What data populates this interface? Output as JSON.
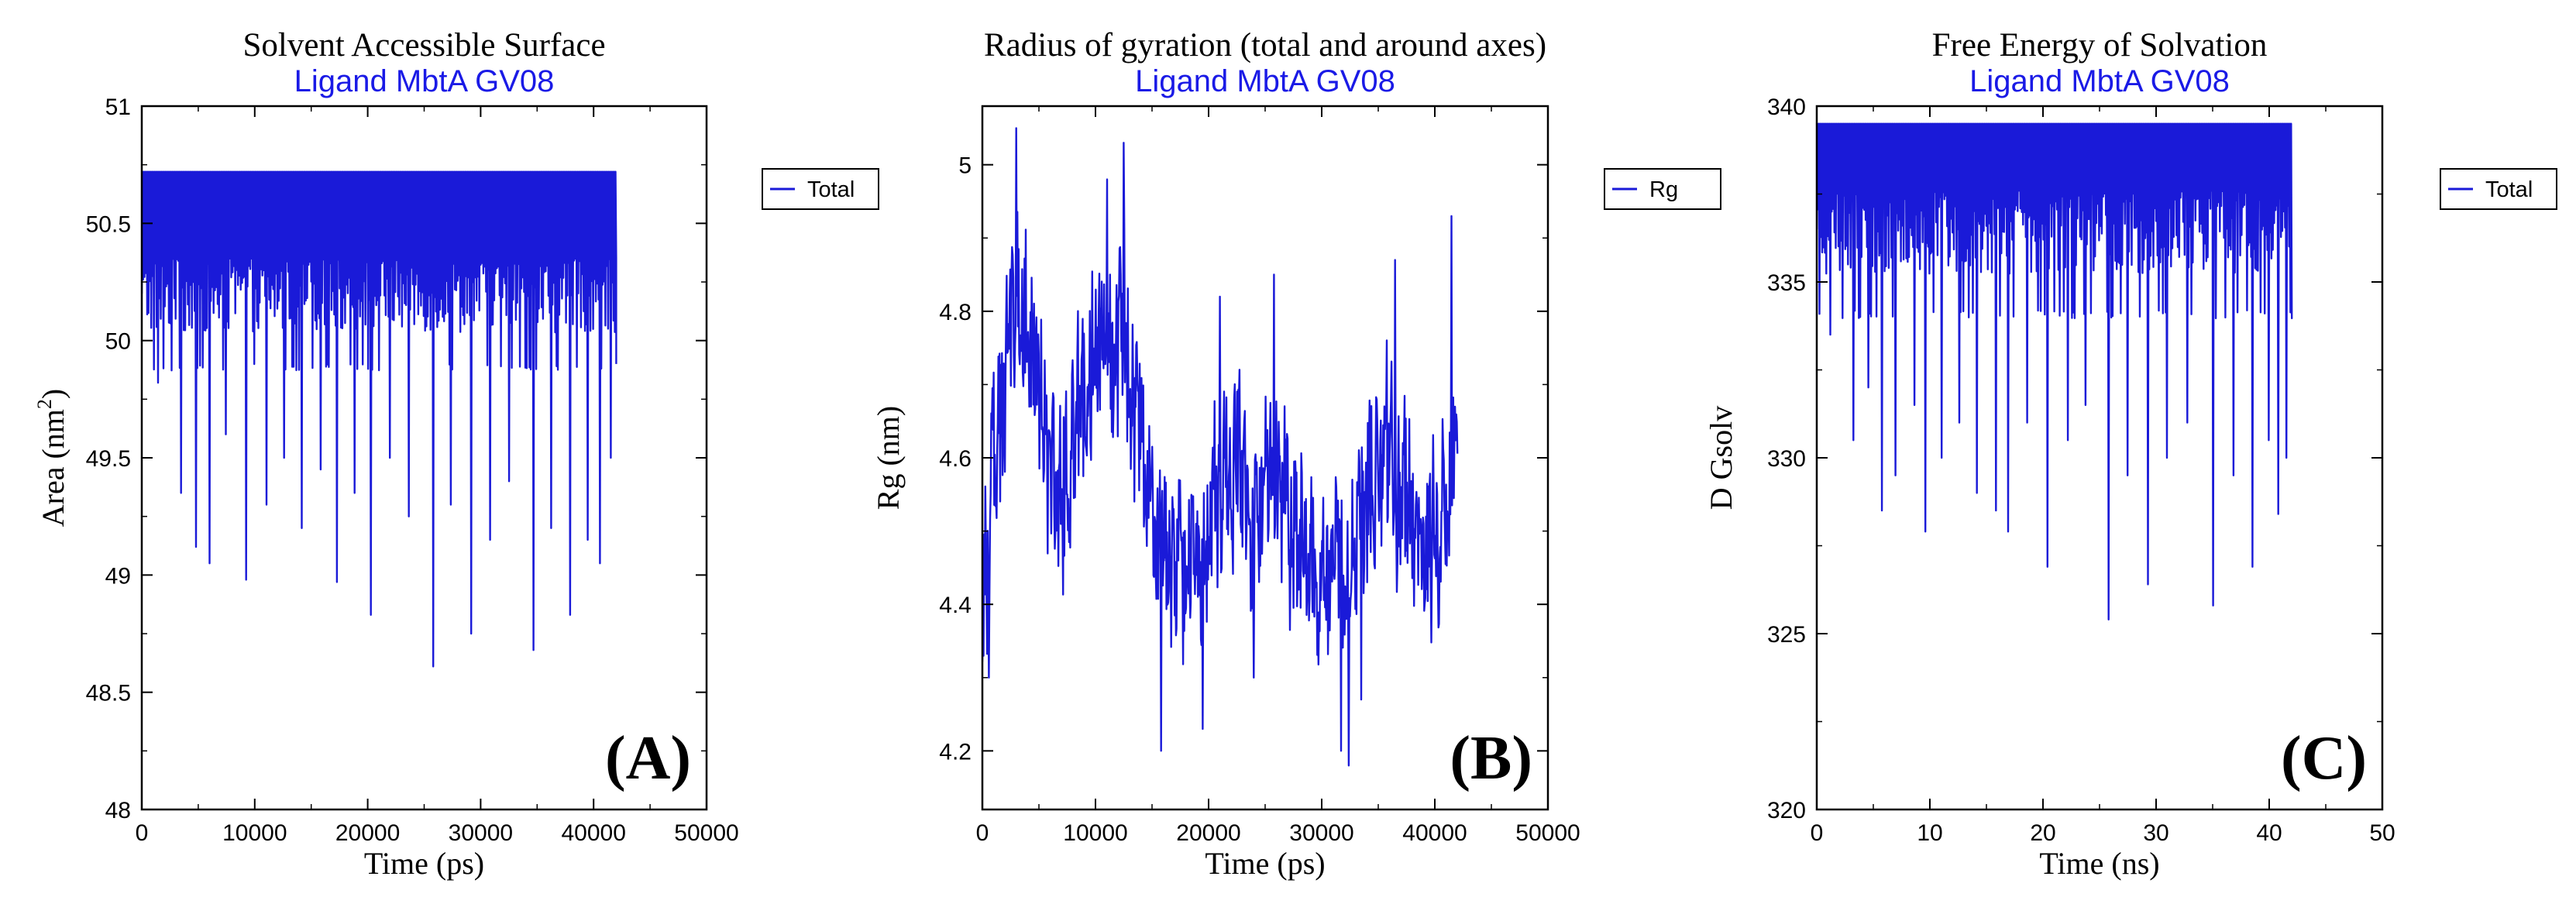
{
  "colors": {
    "series": "#1a1ad8",
    "subtitle": "#1a1ae6",
    "axis": "#000000"
  },
  "chart_data": [
    {
      "id": "A",
      "type": "line",
      "panel_label": "(A)",
      "title": "Solvent Accessible Surface",
      "subtitle": "Ligand MbtA GV08",
      "xlabel": "Time (ps)",
      "ylabel": "Area (nm²)",
      "ylabel_main": "Area (nm",
      "ylabel_sup": "2",
      "ylabel_end": ")",
      "xlim": [
        0,
        50000
      ],
      "ylim": [
        48,
        51
      ],
      "xticks": [
        0,
        10000,
        20000,
        30000,
        40000,
        50000
      ],
      "xtick_labels": [
        "0",
        "10000",
        "20000",
        "30000",
        "40000",
        "50000"
      ],
      "yticks": [
        48,
        48.5,
        49,
        49.5,
        50,
        50.5,
        51
      ],
      "ytick_labels": [
        "48",
        "48.5",
        "49",
        "49.5",
        "50",
        "50.5",
        "51"
      ],
      "legend": {
        "label": "Total",
        "position": "outside-right"
      },
      "series": [
        {
          "name": "Total",
          "x_start": 0,
          "x_end": 42000,
          "n_points": 700,
          "ceiling": 50.72,
          "base": 50.35,
          "typical_low": 49.9,
          "start": 50.2,
          "end": 49.9,
          "dips": [
            [
              1500,
              49.82
            ],
            [
              3500,
              49.35
            ],
            [
              4800,
              49.12
            ],
            [
              6000,
              49.05
            ],
            [
              7500,
              49.6
            ],
            [
              9200,
              48.98
            ],
            [
              11000,
              49.3
            ],
            [
              12600,
              49.5
            ],
            [
              14200,
              49.2
            ],
            [
              15800,
              49.45
            ],
            [
              17300,
              48.97
            ],
            [
              18800,
              49.35
            ],
            [
              20300,
              48.83
            ],
            [
              22000,
              49.5
            ],
            [
              23600,
              49.25
            ],
            [
              25800,
              48.61
            ],
            [
              27400,
              49.3
            ],
            [
              29200,
              48.75
            ],
            [
              30800,
              49.15
            ],
            [
              32500,
              49.4
            ],
            [
              34700,
              48.68
            ],
            [
              36200,
              49.2
            ],
            [
              37900,
              48.83
            ],
            [
              39500,
              49.15
            ],
            [
              40600,
              49.05
            ],
            [
              41500,
              49.5
            ]
          ]
        }
      ]
    },
    {
      "id": "B",
      "type": "line",
      "panel_label": "(B)",
      "title": "Radius of gyration (total and around axes)",
      "subtitle": "Ligand MbtA GV08",
      "xlabel": "Time (ps)",
      "ylabel": "Rg (nm)",
      "xlim": [
        0,
        50000
      ],
      "ylim": [
        4.12,
        5.08
      ],
      "xticks": [
        0,
        10000,
        20000,
        30000,
        40000,
        50000
      ],
      "xtick_labels": [
        "0",
        "10000",
        "20000",
        "30000",
        "40000",
        "50000"
      ],
      "yticks": [
        4.2,
        4.4,
        4.6,
        4.8,
        5.0
      ],
      "ytick_labels": [
        "4.2",
        "4.4",
        "4.6",
        "4.8",
        "5"
      ],
      "legend": {
        "label": "Rg",
        "position": "outside-right"
      },
      "series": [
        {
          "name": "Rg",
          "x_start": 0,
          "x_end": 42000,
          "n_points": 800,
          "trend": [
            [
              0,
              4.45
            ],
            [
              1000,
              4.6
            ],
            [
              2500,
              4.78
            ],
            [
              3200,
              4.85
            ],
            [
              5000,
              4.68
            ],
            [
              7000,
              4.55
            ],
            [
              9000,
              4.7
            ],
            [
              11000,
              4.75
            ],
            [
              12500,
              4.78
            ],
            [
              14000,
              4.62
            ],
            [
              16000,
              4.45
            ],
            [
              18000,
              4.48
            ],
            [
              20000,
              4.5
            ],
            [
              22000,
              4.6
            ],
            [
              24000,
              4.52
            ],
            [
              26000,
              4.55
            ],
            [
              28000,
              4.5
            ],
            [
              30000,
              4.45
            ],
            [
              32000,
              4.42
            ],
            [
              34000,
              4.55
            ],
            [
              36000,
              4.6
            ],
            [
              38000,
              4.5
            ],
            [
              40000,
              4.48
            ],
            [
              42000,
              4.65
            ]
          ],
          "peaks": [
            [
              3000,
              5.05
            ],
            [
              11000,
              4.98
            ],
            [
              12500,
              5.03
            ],
            [
              41500,
              4.93
            ],
            [
              36500,
              4.87
            ],
            [
              25800,
              4.85
            ],
            [
              21000,
              4.82
            ]
          ],
          "troughs": [
            [
              600,
              4.3
            ],
            [
              15800,
              4.2
            ],
            [
              19500,
              4.23
            ],
            [
              32400,
              4.18
            ],
            [
              31700,
              4.2
            ],
            [
              33500,
              4.27
            ],
            [
              24000,
              4.3
            ]
          ]
        }
      ]
    },
    {
      "id": "C",
      "type": "line",
      "panel_label": "(C)",
      "title": "Free Energy of Solvation",
      "subtitle": "Ligand MbtA GV08",
      "xlabel": "Time (ns)",
      "ylabel": "D Gsolv",
      "xlim": [
        0,
        50
      ],
      "ylim": [
        320,
        340
      ],
      "xticks": [
        0,
        10,
        20,
        30,
        40,
        50
      ],
      "xtick_labels": [
        "0",
        "10",
        "20",
        "30",
        "40",
        "50"
      ],
      "yticks": [
        320,
        325,
        330,
        335,
        340
      ],
      "ytick_labels": [
        "320",
        "325",
        "330",
        "335",
        "340"
      ],
      "legend": {
        "label": "Total",
        "position": "outside-right"
      },
      "series": [
        {
          "name": "Total",
          "x_start": 0,
          "x_end": 42,
          "n_points": 700,
          "ceiling": 339.5,
          "base": 337.6,
          "typical_low": 334.2,
          "start": 336.5,
          "end": 334.0,
          "dips": [
            [
              1.2,
              333.5
            ],
            [
              3.2,
              330.5
            ],
            [
              4.6,
              332
            ],
            [
              5.8,
              328.5
            ],
            [
              7,
              329.5
            ],
            [
              8.6,
              331.5
            ],
            [
              9.6,
              327.9
            ],
            [
              11,
              330
            ],
            [
              12.6,
              331
            ],
            [
              14.2,
              329
            ],
            [
              15.8,
              328.5
            ],
            [
              16.9,
              327.9
            ],
            [
              18.6,
              331
            ],
            [
              20.4,
              326.9
            ],
            [
              22.2,
              330.5
            ],
            [
              23.8,
              331.5
            ],
            [
              25.8,
              325.4
            ],
            [
              27.5,
              329.5
            ],
            [
              29.3,
              326.4
            ],
            [
              31,
              330
            ],
            [
              32.8,
              331
            ],
            [
              35,
              325.8
            ],
            [
              36.8,
              329.5
            ],
            [
              38.5,
              326.9
            ],
            [
              40,
              330.5
            ],
            [
              40.8,
              328.4
            ],
            [
              41.5,
              330
            ]
          ]
        }
      ]
    }
  ]
}
